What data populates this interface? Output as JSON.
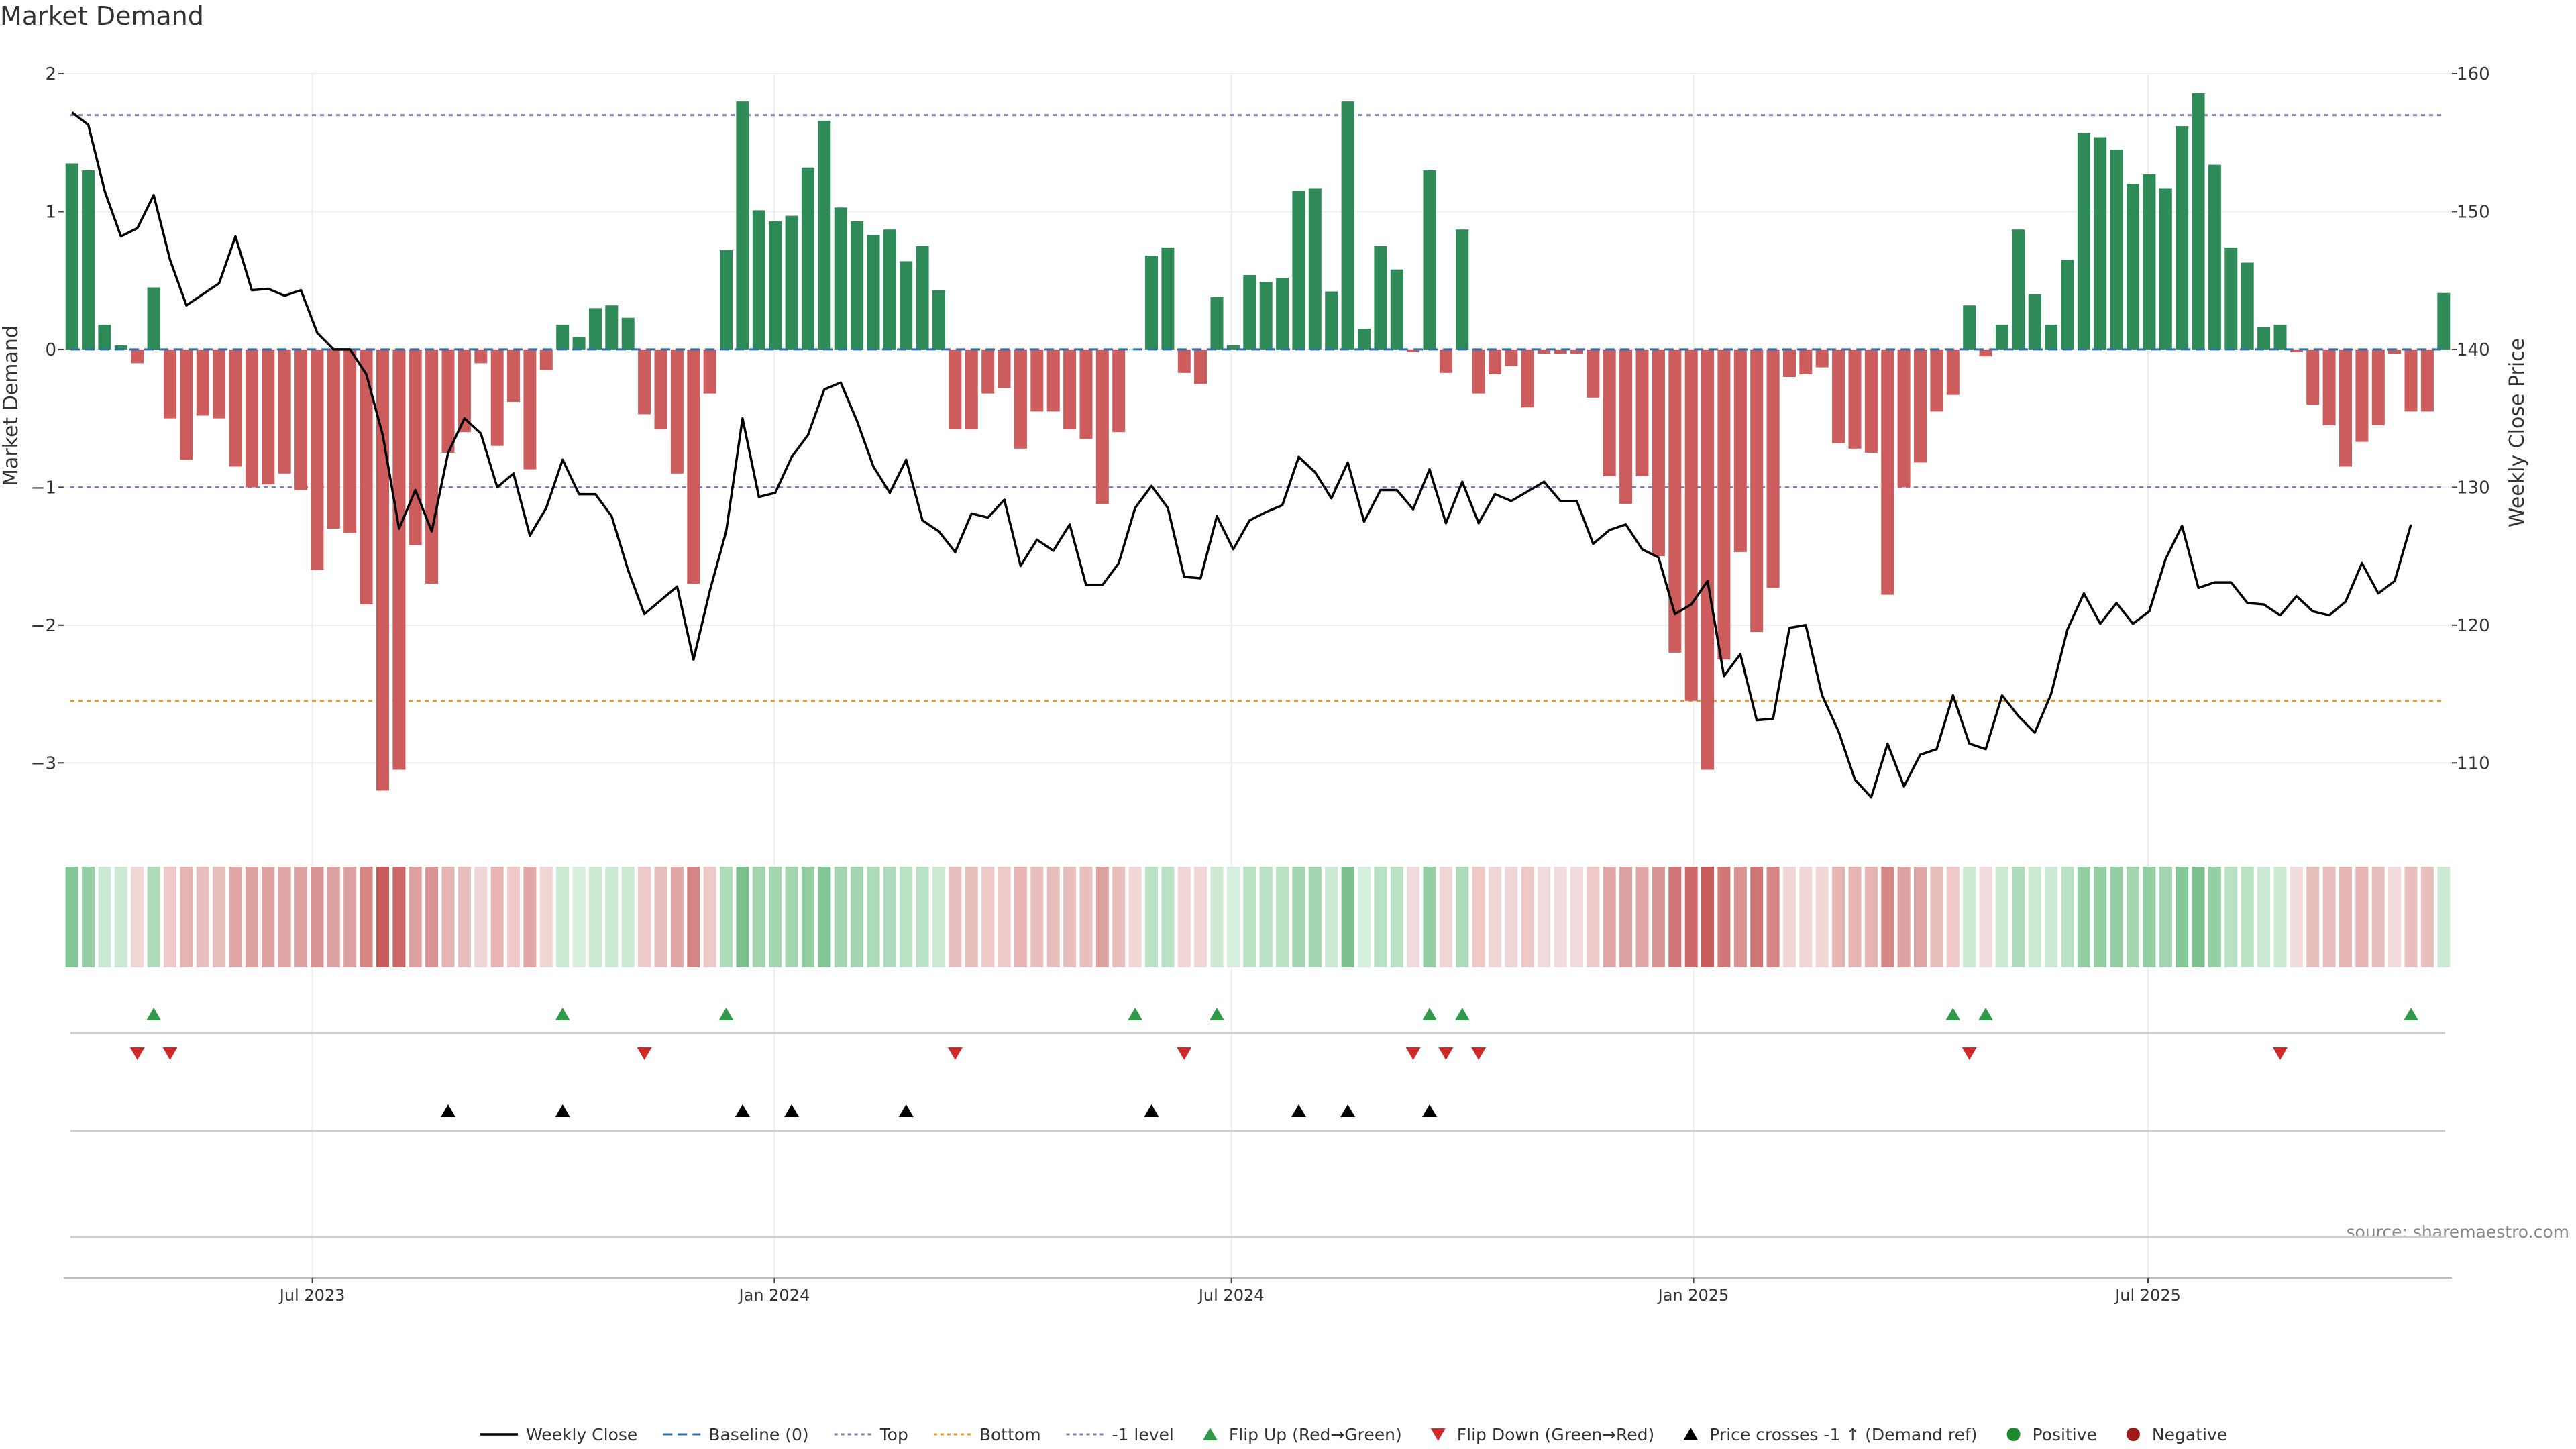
{
  "chart_data": {
    "type": "bar",
    "title": "Market Demand",
    "ylabel": "Market Demand",
    "y2label": "Weekly Close Price",
    "ylim": [
      -3.5,
      2.0
    ],
    "y2lim": [
      105,
      160
    ],
    "yticks": [
      2,
      1,
      0,
      -1,
      -2,
      -3
    ],
    "yticklabels": [
      "2",
      "1",
      "0",
      "−1",
      "−2",
      "−3"
    ],
    "y2ticks": [
      160,
      150,
      140,
      130,
      120,
      110
    ],
    "x_start": "2023-03-24",
    "x_end": "2025-10-30",
    "xticks": [
      {
        "date": "2023-07-01",
        "label": "Jul 2023"
      },
      {
        "date": "2024-01-01",
        "label": "Jan 2024"
      },
      {
        "date": "2024-07-01",
        "label": "Jul 2024"
      },
      {
        "date": "2025-01-01",
        "label": "Jan 2025"
      },
      {
        "date": "2025-07-01",
        "label": "Jul 2025"
      }
    ],
    "reference_lines": [
      {
        "name": "Top",
        "value": 1.7,
        "color": "#8878b8"
      },
      {
        "name": "Bottom",
        "value": -2.55,
        "color": "#e09a30"
      },
      {
        "name": "-1 level",
        "value": -1.0,
        "color": "#8878b8"
      }
    ],
    "demand": [
      1.35,
      1.3,
      0.18,
      0.03,
      -0.1,
      0.45,
      -0.5,
      -0.8,
      -0.48,
      -0.5,
      -0.85,
      -1.0,
      -0.98,
      -0.9,
      -1.02,
      -1.6,
      -1.3,
      -1.33,
      -1.85,
      -3.2,
      -3.05,
      -1.42,
      -1.7,
      -0.75,
      -0.6,
      -0.1,
      -0.7,
      -0.38,
      -0.87,
      -0.15,
      0.18,
      0.09,
      0.3,
      0.32,
      0.23,
      -0.47,
      -0.58,
      -0.9,
      -1.7,
      -0.32,
      0.72,
      1.8,
      1.01,
      0.93,
      0.97,
      1.32,
      1.66,
      1.03,
      0.93,
      0.83,
      0.87,
      0.64,
      0.75,
      0.43,
      -0.58,
      -0.58,
      -0.32,
      -0.28,
      -0.72,
      -0.45,
      -0.45,
      -0.58,
      -0.65,
      -1.12,
      -0.6,
      0.0,
      0.68,
      0.74,
      -0.17,
      -0.25,
      0.38,
      0.03,
      0.54,
      0.49,
      0.52,
      1.15,
      1.17,
      0.42,
      1.8,
      0.15,
      0.75,
      0.58,
      -0.02,
      1.3,
      -0.17,
      0.87,
      -0.32,
      -0.18,
      -0.12,
      -0.42,
      -0.03,
      -0.03,
      -0.03,
      -0.35,
      -0.92,
      -1.12,
      -0.92,
      -1.5,
      -2.2,
      -2.55,
      -3.05,
      -2.25,
      -1.47,
      -2.05,
      -1.73,
      -0.2,
      -0.18,
      -0.13,
      -0.68,
      -0.72,
      -0.75,
      -1.78,
      -1.0,
      -0.82,
      -0.45,
      -0.33,
      0.32,
      -0.05,
      0.18,
      0.87,
      0.4,
      0.18,
      0.65,
      1.57,
      1.54,
      1.45,
      1.2,
      1.27,
      1.17,
      1.62,
      1.86,
      1.34,
      0.74,
      0.63,
      0.16,
      0.18,
      -0.02,
      -0.4,
      -0.55,
      -0.85,
      -0.67,
      -0.55,
      -0.03,
      -0.45,
      -0.45,
      0.41
    ],
    "weekly_close": [
      157.2,
      156.3,
      151.5,
      148.2,
      148.8,
      151.2,
      146.5,
      143.2,
      144.0,
      144.8,
      148.2,
      144.3,
      144.4,
      143.9,
      144.3,
      141.2,
      140.0,
      140.0,
      138.2,
      133.8,
      127.0,
      129.8,
      126.8,
      132.5,
      135.0,
      133.9,
      130.0,
      131.0,
      126.5,
      128.5,
      132.0,
      129.5,
      129.5,
      127.9,
      124.0,
      120.8,
      121.8,
      122.8,
      117.5,
      122.5,
      126.8,
      135.0,
      129.3,
      129.6,
      132.2,
      133.8,
      137.1,
      137.6,
      134.8,
      131.5,
      129.6,
      132.0,
      127.6,
      126.8,
      125.3,
      128.1,
      127.8,
      129.1,
      124.3,
      126.2,
      125.4,
      127.3,
      122.9,
      122.9,
      124.5,
      128.5,
      130.1,
      128.5,
      123.5,
      123.4,
      127.9,
      125.5,
      127.6,
      128.2,
      128.7,
      132.2,
      131.1,
      129.2,
      131.8,
      127.5,
      129.8,
      129.8,
      128.4,
      131.3,
      127.4,
      130.4,
      127.4,
      129.5,
      129.0,
      129.7,
      130.4,
      129.0,
      129.0,
      125.9,
      126.9,
      127.3,
      125.5,
      124.9,
      120.8,
      121.5,
      123.2,
      116.3,
      117.9,
      113.1,
      113.2,
      119.8,
      120.0,
      114.9,
      112.3,
      108.8,
      107.5,
      111.4,
      108.3,
      110.6,
      111.0,
      114.9,
      111.4,
      111.0,
      114.9,
      113.4,
      112.2,
      115.0,
      119.7,
      122.3,
      120.1,
      121.6,
      120.1,
      121.0,
      124.8,
      127.2,
      122.7,
      123.1,
      123.1,
      121.6,
      121.5,
      120.7,
      122.1,
      121.0,
      120.7,
      121.7,
      124.5,
      122.3,
      123.2,
      127.3
    ],
    "heat_colors": [
      "#84c797",
      "#93cfa3",
      "#cbe9d3",
      "#cbe9d3",
      "#f0d6d5",
      "#aedcbb",
      "#eec9c8",
      "#e5b4b3",
      "#e9bfbe",
      "#e9bfbe",
      "#e0a7a6",
      "#dea2a1",
      "#dea2a1",
      "#e0a7a6",
      "#dea2a1",
      "#d99493",
      "#dba09f",
      "#dba09f",
      "#d48584",
      "#c75c5b",
      "#cc6968",
      "#dba09f",
      "#d99493",
      "#e5b4b3",
      "#e9bfbe",
      "#f0d6d5",
      "#e5b4b3",
      "#eec9c8",
      "#e0a7a6",
      "#f0d6d5",
      "#cbe9d3",
      "#d6eedc",
      "#cbe9d3",
      "#cbe9d3",
      "#cbe9d3",
      "#eec9c8",
      "#e9bfbe",
      "#e0a7a6",
      "#d48584",
      "#eec9c8",
      "#aedcbb",
      "#7cc08f",
      "#a2d5b0",
      "#a2d5b0",
      "#a2d5b0",
      "#93cfa3",
      "#84c797",
      "#a2d5b0",
      "#a2d5b0",
      "#aedcbb",
      "#aedcbb",
      "#b9e1c4",
      "#b9e1c4",
      "#cbe9d3",
      "#e9bfbe",
      "#e9bfbe",
      "#eec9c8",
      "#eec9c8",
      "#e5b4b3",
      "#e9bfbe",
      "#e9bfbe",
      "#e9bfbe",
      "#e9bfbe",
      "#dba09f",
      "#e9bfbe",
      "#f0d6d5",
      "#b9e1c4",
      "#b9e1c4",
      "#f0d6d5",
      "#f0d6d5",
      "#cbe9d3",
      "#d6eedc",
      "#b9e1c4",
      "#b9e1c4",
      "#b9e1c4",
      "#a2d5b0",
      "#a2d5b0",
      "#cbe9d3",
      "#7cc08f",
      "#d6eedc",
      "#b9e1c4",
      "#b9e1c4",
      "#f2dcdb",
      "#93cfa3",
      "#f0d6d5",
      "#aedcbb",
      "#eec9c8",
      "#f0d6d5",
      "#f0d6d5",
      "#eec9c8",
      "#f2dcdb",
      "#f2dcdb",
      "#f2dcdb",
      "#eec9c8",
      "#e0a7a6",
      "#dba09f",
      "#e0a7a6",
      "#d99493",
      "#cf7776",
      "#cc6968",
      "#c75c5b",
      "#cf7776",
      "#d99493",
      "#cf7776",
      "#d48584",
      "#f0d6d5",
      "#f0d6d5",
      "#f0d6d5",
      "#e5b4b3",
      "#e5b4b3",
      "#e5b4b3",
      "#d48584",
      "#dea2a1",
      "#e0a7a6",
      "#e9bfbe",
      "#eec9c8",
      "#cbe9d3",
      "#f2dcdb",
      "#cbe9d3",
      "#aedcbb",
      "#cbe9d3",
      "#cbe9d3",
      "#b9e1c4",
      "#93cfa3",
      "#93cfa3",
      "#93cfa3",
      "#a2d5b0",
      "#93cfa3",
      "#a2d5b0",
      "#84c797",
      "#7cc08f",
      "#93cfa3",
      "#b9e1c4",
      "#b9e1c4",
      "#cbe9d3",
      "#cbe9d3",
      "#f2dcdb",
      "#e9bfbe",
      "#e9bfbe",
      "#e5b4b3",
      "#e5b4b3",
      "#e9bfbe",
      "#f2dcdb",
      "#e9bfbe",
      "#e9bfbe",
      "#cbe9d3"
    ],
    "flip_up_weeks": [
      5,
      30,
      40,
      65,
      70,
      83,
      85,
      115,
      117,
      143
    ],
    "flip_down_weeks": [
      4,
      6,
      35,
      54,
      68,
      82,
      84,
      86,
      116,
      135
    ],
    "price_cross_weeks": [
      23,
      30,
      41,
      44,
      51,
      66,
      75,
      78,
      83
    ],
    "legend": [
      {
        "label": "Weekly Close",
        "kind": "line",
        "color": "#000000"
      },
      {
        "label": "Baseline (0)",
        "kind": "dash",
        "color": "#2f6fb0"
      },
      {
        "label": "Top",
        "kind": "dots",
        "color": "#8878b8"
      },
      {
        "label": "Bottom",
        "kind": "dots",
        "color": "#e09a30"
      },
      {
        "label": "-1 level",
        "kind": "dots",
        "color": "#8878b8"
      },
      {
        "label": "Flip Up (Red→Green)",
        "kind": "tri-up",
        "color": "#2e9a4a"
      },
      {
        "label": "Flip Down (Green→Red)",
        "kind": "tri-down",
        "color": "#d12a2a"
      },
      {
        "label": "Price crosses -1 ↑ (Demand ref)",
        "kind": "tri-up",
        "color": "#000000"
      },
      {
        "label": "Positive",
        "kind": "dot",
        "color": "#1e8a30"
      },
      {
        "label": "Negative",
        "kind": "dot",
        "color": "#a01a1a"
      }
    ]
  },
  "source_label": "source: sharemaestro.com",
  "colors": {
    "positive": "#2e8b57",
    "negative": "#cd5c5c",
    "price": "#000000"
  }
}
